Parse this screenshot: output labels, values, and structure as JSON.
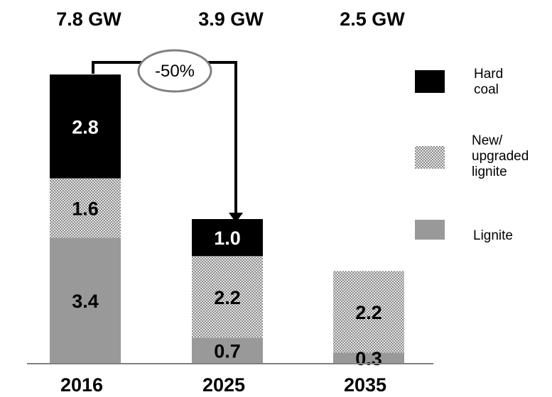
{
  "chart_data": {
    "type": "bar",
    "stacked": true,
    "categories": [
      "2016",
      "2025",
      "2035"
    ],
    "totals": [
      "7.8 GW",
      "3.9 GW",
      "2.5 GW"
    ],
    "series": [
      {
        "name": "Lignite",
        "values": [
          3.4,
          0.7,
          0.3
        ],
        "color": "#999999",
        "pattern": "solid"
      },
      {
        "name": "New/ upgraded lignite",
        "values": [
          1.6,
          2.2,
          2.2
        ],
        "color": "#c8c8c8",
        "pattern": "checker"
      },
      {
        "name": "Hard coal",
        "values": [
          2.8,
          1.0,
          0
        ],
        "color": "#000000",
        "pattern": "solid"
      }
    ],
    "value_labels": [
      [
        "3.4",
        "0.7",
        "0.3"
      ],
      [
        "1.6",
        "2.2",
        "2.2"
      ],
      [
        "2.8",
        "1.0",
        ""
      ]
    ],
    "annotation": {
      "text": "-50%",
      "from": "2016",
      "to": "2025"
    },
    "legend": {
      "position": "right",
      "order": [
        "Hard coal",
        "New/ upgraded lignite",
        "Lignite"
      ]
    },
    "title": "",
    "xlabel": "",
    "ylabel": "",
    "ylim": [
      0,
      8
    ],
    "grid": false
  },
  "legend_lines": {
    "hard_coal": [
      "Hard",
      "coal"
    ],
    "new_lignite": [
      "New/",
      "upgraded",
      "lignite"
    ],
    "lignite": [
      "Lignite"
    ]
  }
}
